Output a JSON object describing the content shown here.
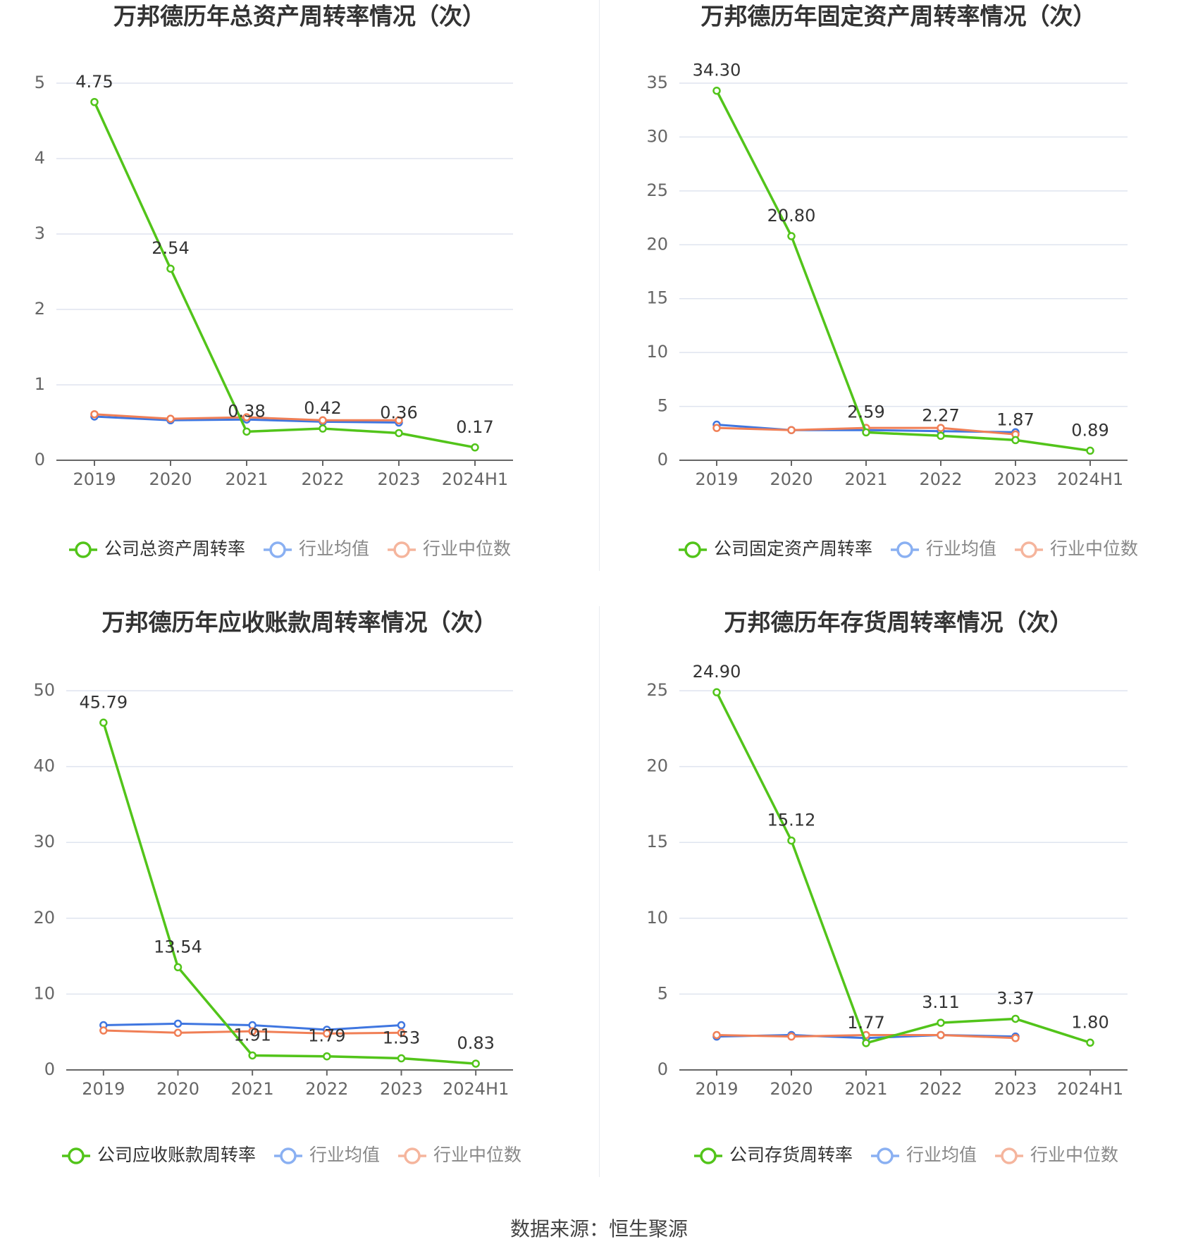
{
  "colors": {
    "company": "#52c41a",
    "avg": "#3f76e0",
    "median": "#f07f56",
    "avg_legend": "#8ab0f2",
    "median_legend": "#f5b59d",
    "grid": "#dfe4ef",
    "axis": "#666666",
    "tick": "#666666",
    "title": "#333333",
    "label": "#333333"
  },
  "source": "数据来源：恒生聚源",
  "chart_data": [
    {
      "type": "line",
      "title": "万邦德历年总资产周转率情况（次）",
      "categories": [
        "2019",
        "2020",
        "2021",
        "2022",
        "2023",
        "2024H1"
      ],
      "yticks": [
        0,
        1,
        2,
        3,
        4,
        5
      ],
      "ylim": [
        0,
        5
      ],
      "grid": true,
      "legend_position": "bottom",
      "series": [
        {
          "name": "公司总资产周转率",
          "role": "company",
          "values": [
            4.75,
            2.54,
            0.38,
            0.42,
            0.36,
            0.17
          ],
          "labels": [
            "4.75",
            "2.54",
            "0.38",
            "0.42",
            "0.36",
            "0.17"
          ]
        },
        {
          "name": "行业均值",
          "role": "avg",
          "values": [
            0.58,
            0.53,
            0.54,
            0.51,
            0.5,
            null
          ]
        },
        {
          "name": "行业中位数",
          "role": "median",
          "values": [
            0.61,
            0.55,
            0.57,
            0.53,
            0.53,
            null
          ]
        }
      ]
    },
    {
      "type": "line",
      "title": "万邦德历年固定资产周转率情况（次）",
      "categories": [
        "2019",
        "2020",
        "2021",
        "2022",
        "2023",
        "2024H1"
      ],
      "yticks": [
        0,
        5,
        10,
        15,
        20,
        25,
        30,
        35
      ],
      "ylim": [
        0,
        35
      ],
      "grid": true,
      "legend_position": "bottom",
      "series": [
        {
          "name": "公司固定资产周转率",
          "role": "company",
          "values": [
            34.3,
            20.8,
            2.59,
            2.27,
            1.87,
            0.89
          ],
          "labels": [
            "34.30",
            "20.80",
            "2.59",
            "2.27",
            "1.87",
            "0.89"
          ]
        },
        {
          "name": "行业均值",
          "role": "avg",
          "values": [
            3.3,
            2.8,
            2.8,
            2.7,
            2.6,
            null
          ]
        },
        {
          "name": "行业中位数",
          "role": "median",
          "values": [
            3.0,
            2.8,
            3.0,
            3.0,
            2.4,
            null
          ]
        }
      ]
    },
    {
      "type": "line",
      "title": "万邦德历年应收账款周转率情况（次）",
      "categories": [
        "2019",
        "2020",
        "2021",
        "2022",
        "2023",
        "2024H1"
      ],
      "yticks": [
        0,
        10,
        20,
        30,
        40,
        50
      ],
      "ylim": [
        0,
        50
      ],
      "grid": true,
      "legend_position": "bottom",
      "series": [
        {
          "name": "公司应收账款周转率",
          "role": "company",
          "values": [
            45.79,
            13.54,
            1.91,
            1.79,
            1.53,
            0.83
          ],
          "labels": [
            "45.79",
            "13.54",
            "1.91",
            "1.79",
            "1.53",
            "0.83"
          ]
        },
        {
          "name": "行业均值",
          "role": "avg",
          "values": [
            5.9,
            6.1,
            5.9,
            5.3,
            5.9,
            null
          ]
        },
        {
          "name": "行业中位数",
          "role": "median",
          "values": [
            5.2,
            4.9,
            5.1,
            4.8,
            4.9,
            null
          ]
        }
      ]
    },
    {
      "type": "line",
      "title": "万邦德历年存货周转率情况（次）",
      "categories": [
        "2019",
        "2020",
        "2021",
        "2022",
        "2023",
        "2024H1"
      ],
      "yticks": [
        0,
        5,
        10,
        15,
        20,
        25
      ],
      "ylim": [
        0,
        25
      ],
      "grid": true,
      "legend_position": "bottom",
      "series": [
        {
          "name": "公司存货周转率",
          "role": "company",
          "values": [
            24.9,
            15.12,
            1.77,
            3.11,
            3.37,
            1.8
          ],
          "labels": [
            "24.90",
            "15.12",
            "1.77",
            "3.11",
            "3.37",
            "1.80"
          ]
        },
        {
          "name": "行业均值",
          "role": "avg",
          "values": [
            2.2,
            2.3,
            2.1,
            2.3,
            2.2,
            null
          ]
        },
        {
          "name": "行业中位数",
          "role": "median",
          "values": [
            2.3,
            2.2,
            2.3,
            2.3,
            2.1,
            null
          ]
        }
      ]
    }
  ]
}
